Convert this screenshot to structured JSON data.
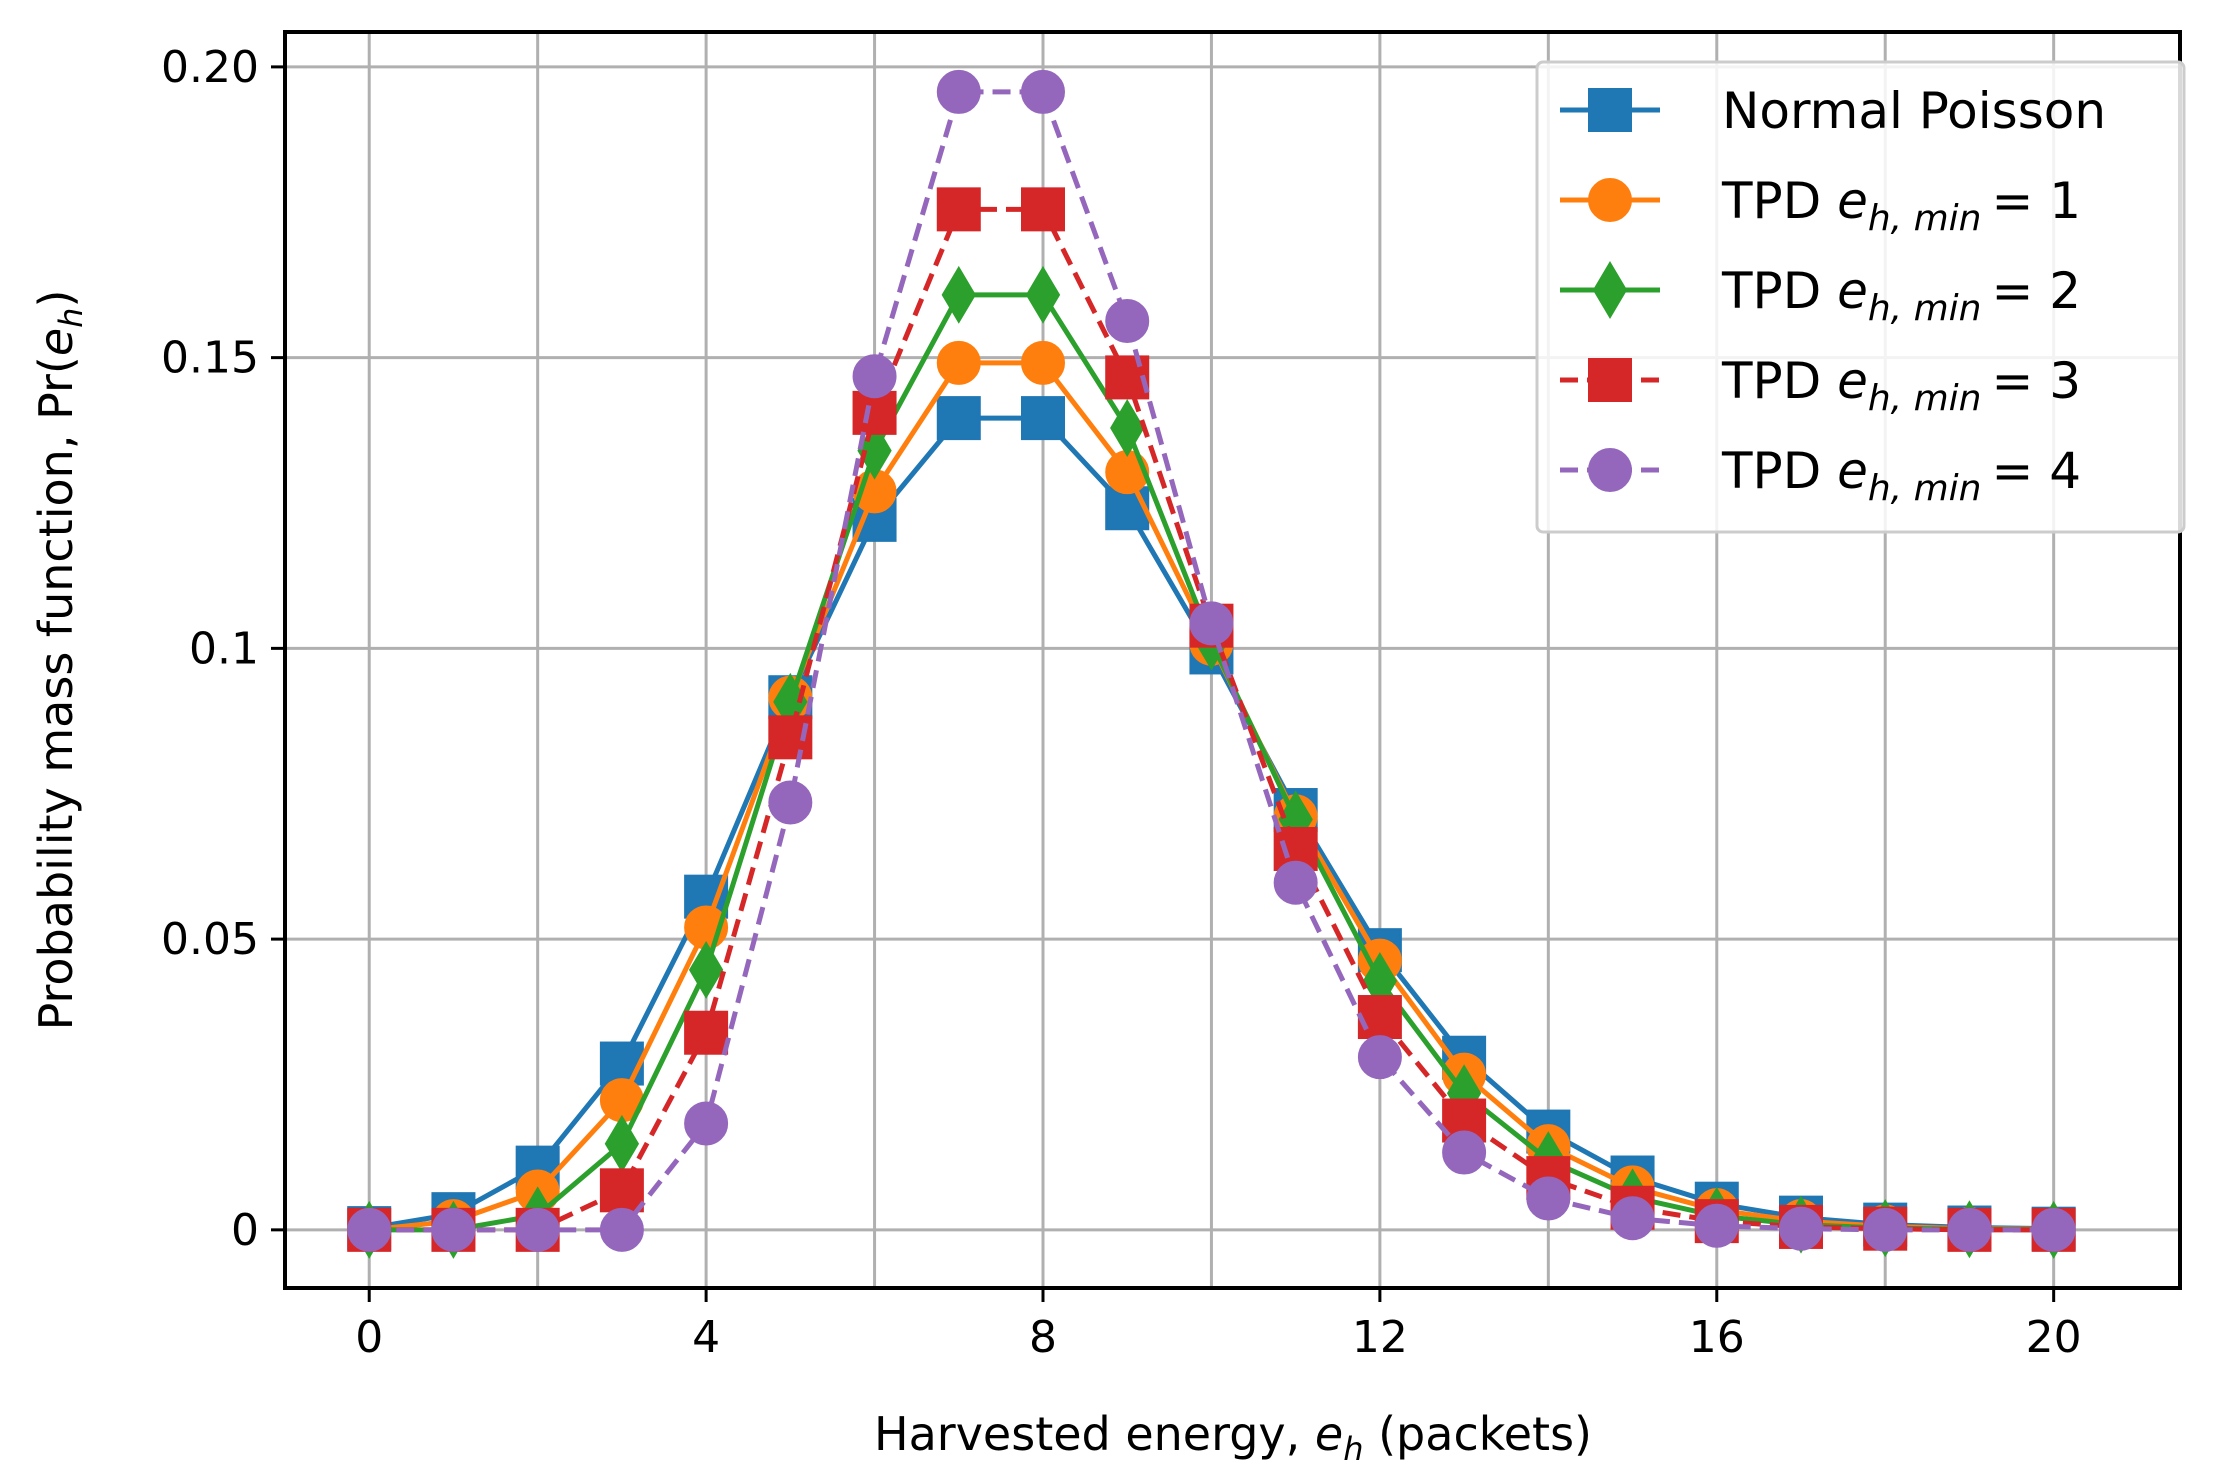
{
  "chart_data": {
    "type": "line",
    "title": "",
    "xlabel": "Harvested energy, ",
    "xlabel_symbol": "e",
    "xlabel_subscript": "h",
    "xlabel_suffix": " (packets)",
    "ylabel": "Probability mass function, Pr(",
    "ylabel_symbol": "e",
    "ylabel_subscript": "h",
    "ylabel_suffix": ")",
    "xlim": [
      -1,
      21.5
    ],
    "ylim": [
      -0.01,
      0.206
    ],
    "xticks": [
      0,
      4,
      8,
      12,
      16,
      20
    ],
    "xtick_labels": [
      "0",
      "4",
      "8",
      "12",
      "16",
      "20"
    ],
    "yticks": [
      0,
      0.05,
      0.1,
      0.15,
      0.2
    ],
    "ytick_labels": [
      "0",
      "0.05",
      "0.1",
      "0.15",
      "0.20"
    ],
    "xgrid": [
      0,
      2,
      4,
      6,
      8,
      10,
      12,
      14,
      16,
      18,
      20
    ],
    "grid": true,
    "legend_position": "top-right",
    "x": [
      0,
      1,
      2,
      3,
      4,
      5,
      6,
      7,
      8,
      9,
      10,
      11,
      12,
      13,
      14,
      15,
      16,
      17,
      18,
      19,
      20
    ],
    "series": [
      {
        "name": "Normal Poisson",
        "legend_prefix": "Normal Poisson",
        "legend_min": "",
        "color": "#1f77b4",
        "marker": "square",
        "dashed": false,
        "values": [
          0.0003,
          0.0027,
          0.0107,
          0.0286,
          0.0573,
          0.0916,
          0.1221,
          0.1396,
          0.1396,
          0.1241,
          0.0993,
          0.0722,
          0.0481,
          0.0296,
          0.0169,
          0.009,
          0.0045,
          0.0021,
          0.0009,
          0.0004,
          0.0002
        ]
      },
      {
        "name": "TPD e_h,min = 1",
        "legend_prefix": "TPD ",
        "legend_min": "= 1",
        "color": "#ff7f0e",
        "marker": "circle",
        "dashed": false,
        "values": [
          0,
          0.0015,
          0.0066,
          0.0223,
          0.052,
          0.0915,
          0.127,
          0.1491,
          0.1491,
          0.1303,
          0.1008,
          0.0711,
          0.0463,
          0.0267,
          0.0144,
          0.0073,
          0.0034,
          0.0015,
          0.0006,
          0.0002,
          0.0001
        ]
      },
      {
        "name": "TPD e_h,min = 2",
        "legend_prefix": "TPD ",
        "legend_min": "= 2",
        "color": "#2ca02c",
        "marker": "diamond",
        "dashed": false,
        "values": [
          0,
          0,
          0.0025,
          0.0148,
          0.0447,
          0.0908,
          0.134,
          0.1608,
          0.1608,
          0.1379,
          0.1012,
          0.0706,
          0.0428,
          0.0235,
          0.012,
          0.0056,
          0.0024,
          0.0009,
          0.0003,
          0.0001,
          0
        ]
      },
      {
        "name": "TPD e_h,min = 3",
        "legend_prefix": "TPD ",
        "legend_min": "= 3",
        "color": "#d62728",
        "marker": "square",
        "dashed": true,
        "values": [
          0,
          0,
          0,
          0.0068,
          0.0339,
          0.0847,
          0.1405,
          0.1755,
          0.1755,
          0.1466,
          0.1039,
          0.0655,
          0.0366,
          0.0188,
          0.0089,
          0.0038,
          0.0015,
          0.0005,
          0.0002,
          0,
          0
        ]
      },
      {
        "name": "TPD e_h,min = 4",
        "legend_prefix": "TPD ",
        "legend_min": "= 4",
        "color": "#9467bd",
        "marker": "circle",
        "dashed": true,
        "values": [
          0,
          0,
          0,
          0,
          0.0183,
          0.0735,
          0.1468,
          0.1957,
          0.1957,
          0.1563,
          0.1043,
          0.0597,
          0.0297,
          0.0133,
          0.0054,
          0.002,
          0.0007,
          0.0002,
          0,
          0,
          0
        ]
      }
    ],
    "legend_symbol": "e",
    "legend_subscript": "h, min"
  }
}
